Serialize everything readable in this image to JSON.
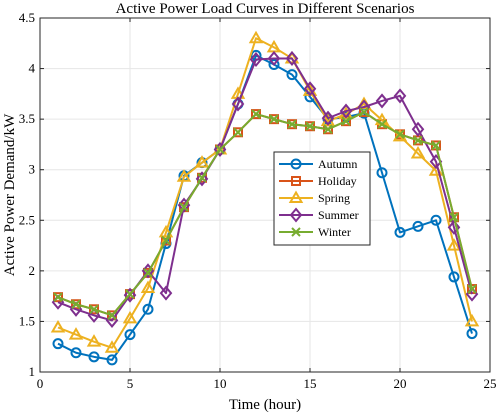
{
  "chart_data": {
    "type": "line",
    "title": "Active Power Load Curves in Different Scenarios",
    "xlabel": "Time (hour)",
    "ylabel": "Active Power Demand/kW",
    "xlim": [
      0,
      25
    ],
    "ylim": [
      1,
      4.5
    ],
    "xticks": [
      0,
      5,
      10,
      15,
      20,
      25
    ],
    "yticks": [
      1,
      1.5,
      2,
      2.5,
      3,
      3.5,
      4,
      4.5
    ],
    "grid": true,
    "legend_position": "center-right",
    "x": [
      1,
      2,
      3,
      4,
      5,
      6,
      7,
      8,
      9,
      10,
      11,
      12,
      13,
      14,
      15,
      16,
      17,
      18,
      19,
      20,
      21,
      22,
      23,
      24
    ],
    "series": [
      {
        "name": "Autumn",
        "color": "#0072BD",
        "marker": "circle",
        "values": [
          1.28,
          1.19,
          1.15,
          1.12,
          1.37,
          1.62,
          2.27,
          2.94,
          3.07,
          3.2,
          3.65,
          4.13,
          4.04,
          3.94,
          3.72,
          3.5,
          3.52,
          3.56,
          2.97,
          2.38,
          2.44,
          2.5,
          1.94,
          1.38
        ]
      },
      {
        "name": "Holiday",
        "color": "#D95319",
        "marker": "square",
        "values": [
          1.74,
          1.67,
          1.62,
          1.56,
          1.77,
          1.98,
          2.3,
          2.63,
          2.92,
          3.2,
          3.37,
          3.55,
          3.5,
          3.45,
          3.43,
          3.4,
          3.48,
          3.57,
          3.45,
          3.35,
          3.29,
          3.24,
          2.53,
          1.82
        ]
      },
      {
        "name": "Spring",
        "color": "#EDB120",
        "marker": "triangle",
        "values": [
          1.44,
          1.37,
          1.3,
          1.24,
          1.53,
          1.83,
          2.38,
          2.93,
          3.07,
          3.2,
          3.75,
          4.3,
          4.21,
          4.1,
          3.78,
          3.48,
          3.55,
          3.65,
          3.49,
          3.33,
          3.16,
          2.99,
          2.25,
          1.5
        ]
      },
      {
        "name": "Summer",
        "color": "#7E2F8E",
        "marker": "diamond",
        "values": [
          1.69,
          1.62,
          1.56,
          1.51,
          1.76,
          2.0,
          1.78,
          2.65,
          2.91,
          3.2,
          3.65,
          4.09,
          4.1,
          4.1,
          3.8,
          3.51,
          3.58,
          3.62,
          3.68,
          3.73,
          3.4,
          3.08,
          2.43,
          1.77
        ]
      },
      {
        "name": "Winter",
        "color": "#77AC30",
        "marker": "x",
        "values": [
          1.74,
          1.67,
          1.62,
          1.56,
          1.77,
          1.98,
          2.3,
          2.63,
          2.92,
          3.2,
          3.37,
          3.55,
          3.5,
          3.45,
          3.43,
          3.4,
          3.48,
          3.57,
          3.45,
          3.35,
          3.29,
          3.24,
          2.53,
          1.82
        ]
      }
    ]
  }
}
